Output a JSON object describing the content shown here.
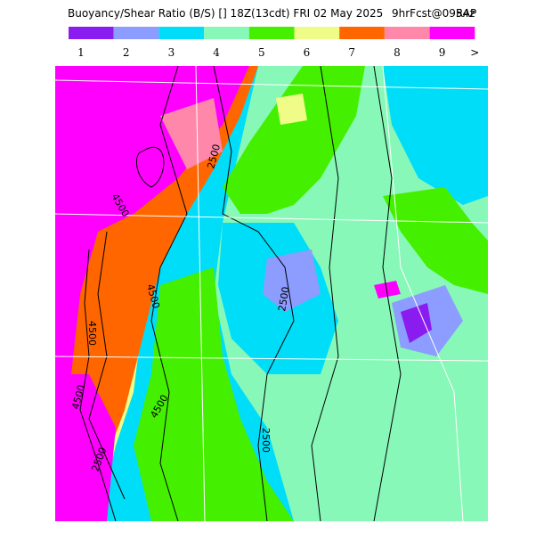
{
  "header": {
    "title": "Buoyancy/Shear Ratio (B/S) [] 18Z(13cdt) FRI 02 May 2025",
    "forecast": "9hrFcst@0954z",
    "model": "RAP"
  },
  "legend": {
    "items": [
      {
        "label": "1",
        "color": "#8a1cf0"
      },
      {
        "label": "2",
        "color": "#8c9cff"
      },
      {
        "label": "3",
        "color": "#00ddf8"
      },
      {
        "label": "4",
        "color": "#88f8b8"
      },
      {
        "label": "5",
        "color": "#44f000"
      },
      {
        "label": "6",
        "color": "#f0fc88"
      },
      {
        "label": "7",
        "color": "#ff6600"
      },
      {
        "label": "8",
        "color": "#ff88aa"
      },
      {
        "label": "9",
        "color": "#ff00ff"
      }
    ],
    "more": ">"
  },
  "contour_labels": [
    "2500",
    "4500",
    "4500",
    "4500",
    "4500",
    "2500",
    "2500",
    "4500",
    "2500"
  ]
}
